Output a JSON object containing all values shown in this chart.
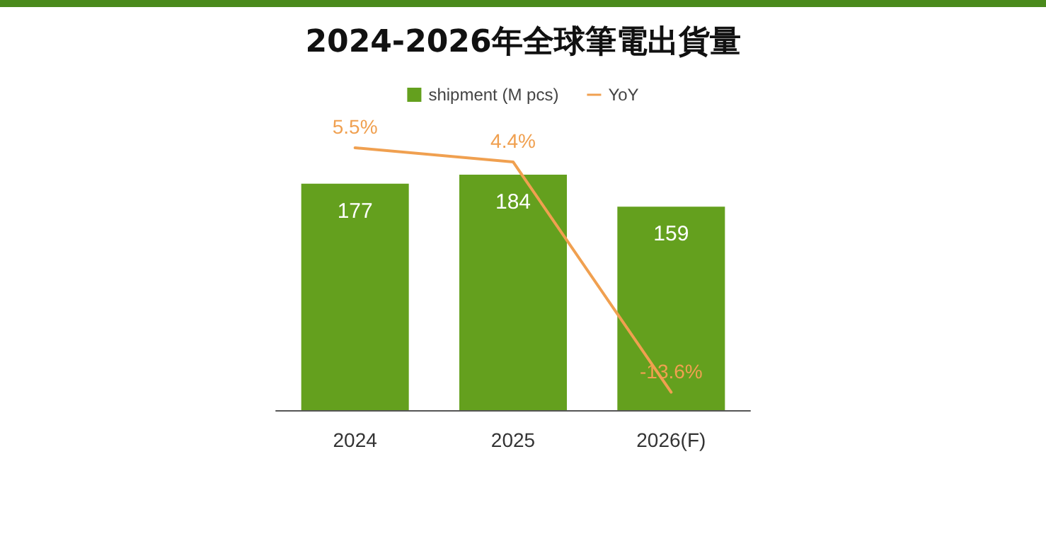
{
  "chart_data": {
    "type": "bar",
    "title": "2024-2026年全球筆電出貨量",
    "categories": [
      "2024",
      "2025",
      "2026(F)"
    ],
    "series": [
      {
        "name": "shipment (M pcs)",
        "color": "#64a01e",
        "values": [
          177,
          184,
          159
        ],
        "value_labels": [
          "177",
          "184",
          "159"
        ]
      },
      {
        "name": "YoY",
        "type": "line",
        "axis": "y2",
        "color": "#f0a050",
        "values": [
          5.5,
          4.4,
          -13.6
        ],
        "value_labels": [
          "5.5%",
          "4.4%",
          "-13.6%"
        ]
      }
    ],
    "tick_labels": "x",
    "grid": false,
    "legend": "top",
    "marker": "none",
    "line_style": "solid"
  }
}
